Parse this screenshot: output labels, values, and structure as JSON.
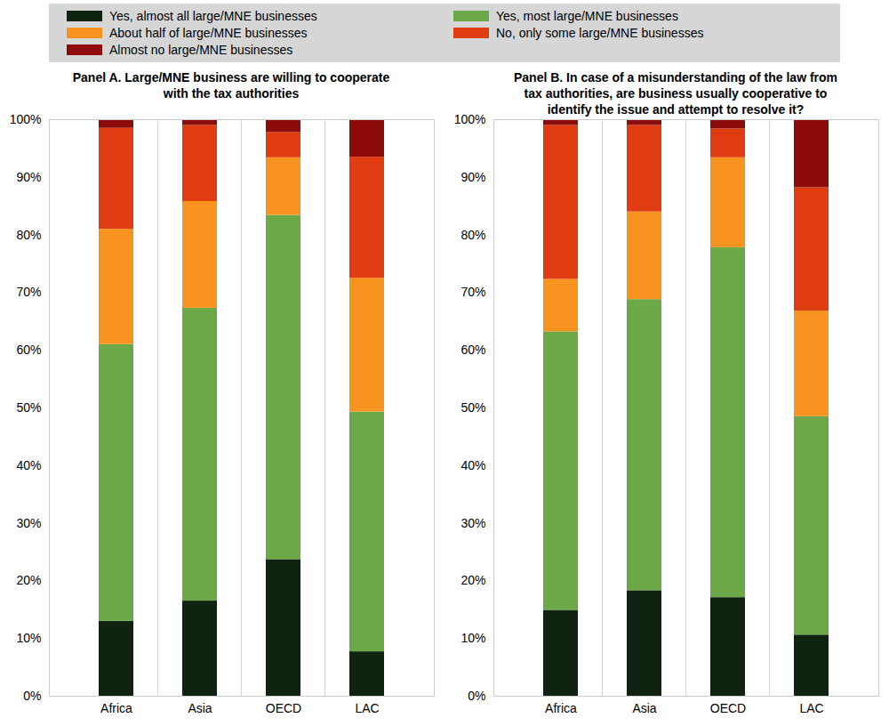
{
  "chart_data": [
    {
      "type": "bar",
      "stacked": true,
      "grid": false,
      "legend": "top",
      "title": "Panel A. Large/MNE business are willing to cooperate with the tax authorities",
      "categories": [
        "Africa",
        "Asia",
        "OECD",
        "LAC"
      ],
      "ylim": [
        0,
        100
      ],
      "yticks": [
        {
          "value": 0,
          "label": "0%"
        },
        {
          "value": 10,
          "label": "10%"
        },
        {
          "value": 20,
          "label": "20%"
        },
        {
          "value": 30,
          "label": "30%"
        },
        {
          "value": 40,
          "label": "40%"
        },
        {
          "value": 50,
          "label": "50%"
        },
        {
          "value": 60,
          "label": "60%"
        },
        {
          "value": 70,
          "label": "70%"
        },
        {
          "value": 80,
          "label": "80%"
        },
        {
          "value": 90,
          "label": "90%"
        },
        {
          "value": 100,
          "label": "100%"
        }
      ],
      "series": [
        {
          "name": "Yes, almost all large/MNE businesses",
          "color": "#0f2310",
          "values": [
            13,
            16.5,
            23.7,
            7.7
          ]
        },
        {
          "name": "Yes, most large/MNE businesses",
          "color": "#6ca848",
          "values": [
            48,
            50.8,
            59.7,
            41.6
          ]
        },
        {
          "name": "About half of large/MNE businesses",
          "color": "#f7931e",
          "values": [
            20,
            18.5,
            10,
            23.2
          ]
        },
        {
          "name": "No, only some large/MNE businesses",
          "color": "#e03c12",
          "values": [
            17.5,
            13.2,
            4.4,
            21
          ]
        },
        {
          "name": "Almost no large/MNE businesses",
          "color": "#8c0b0b",
          "values": [
            1.5,
            1,
            2.2,
            6.5
          ]
        }
      ]
    },
    {
      "type": "bar",
      "stacked": true,
      "grid": false,
      "legend": "top",
      "title": "Panel B.  In case of a misunderstanding of the law from tax authorities, are business usually cooperative to identify the issue and attempt to resolve it?",
      "categories": [
        "Africa",
        "Asia",
        "OECD",
        "LAC"
      ],
      "ylim": [
        0,
        100
      ],
      "yticks": [
        {
          "value": 0,
          "label": "0%"
        },
        {
          "value": 10,
          "label": "10%"
        },
        {
          "value": 20,
          "label": "20%"
        },
        {
          "value": 30,
          "label": "30%"
        },
        {
          "value": 40,
          "label": "40%"
        },
        {
          "value": 50,
          "label": "50%"
        },
        {
          "value": 60,
          "label": "60%"
        },
        {
          "value": 70,
          "label": "70%"
        },
        {
          "value": 80,
          "label": "80%"
        },
        {
          "value": 90,
          "label": "90%"
        },
        {
          "value": 100,
          "label": "100%"
        }
      ],
      "series": [
        {
          "name": "Yes, almost all large/MNE businesses",
          "color": "#0f2310",
          "values": [
            14.9,
            18.3,
            17.1,
            10.6
          ]
        },
        {
          "name": "Yes, most large/MNE businesses",
          "color": "#6ca848",
          "values": [
            48.3,
            50.5,
            60.7,
            37.9
          ]
        },
        {
          "name": "About half of large/MNE businesses",
          "color": "#f7931e",
          "values": [
            9.1,
            15.2,
            15.6,
            18.3
          ]
        },
        {
          "name": "No, only some large/MNE businesses",
          "color": "#e03c12",
          "values": [
            26.7,
            15,
            5,
            21.4
          ]
        },
        {
          "name": "Almost no large/MNE businesses",
          "color": "#8c0b0b",
          "values": [
            1,
            1,
            1.6,
            11.8
          ]
        }
      ]
    }
  ]
}
